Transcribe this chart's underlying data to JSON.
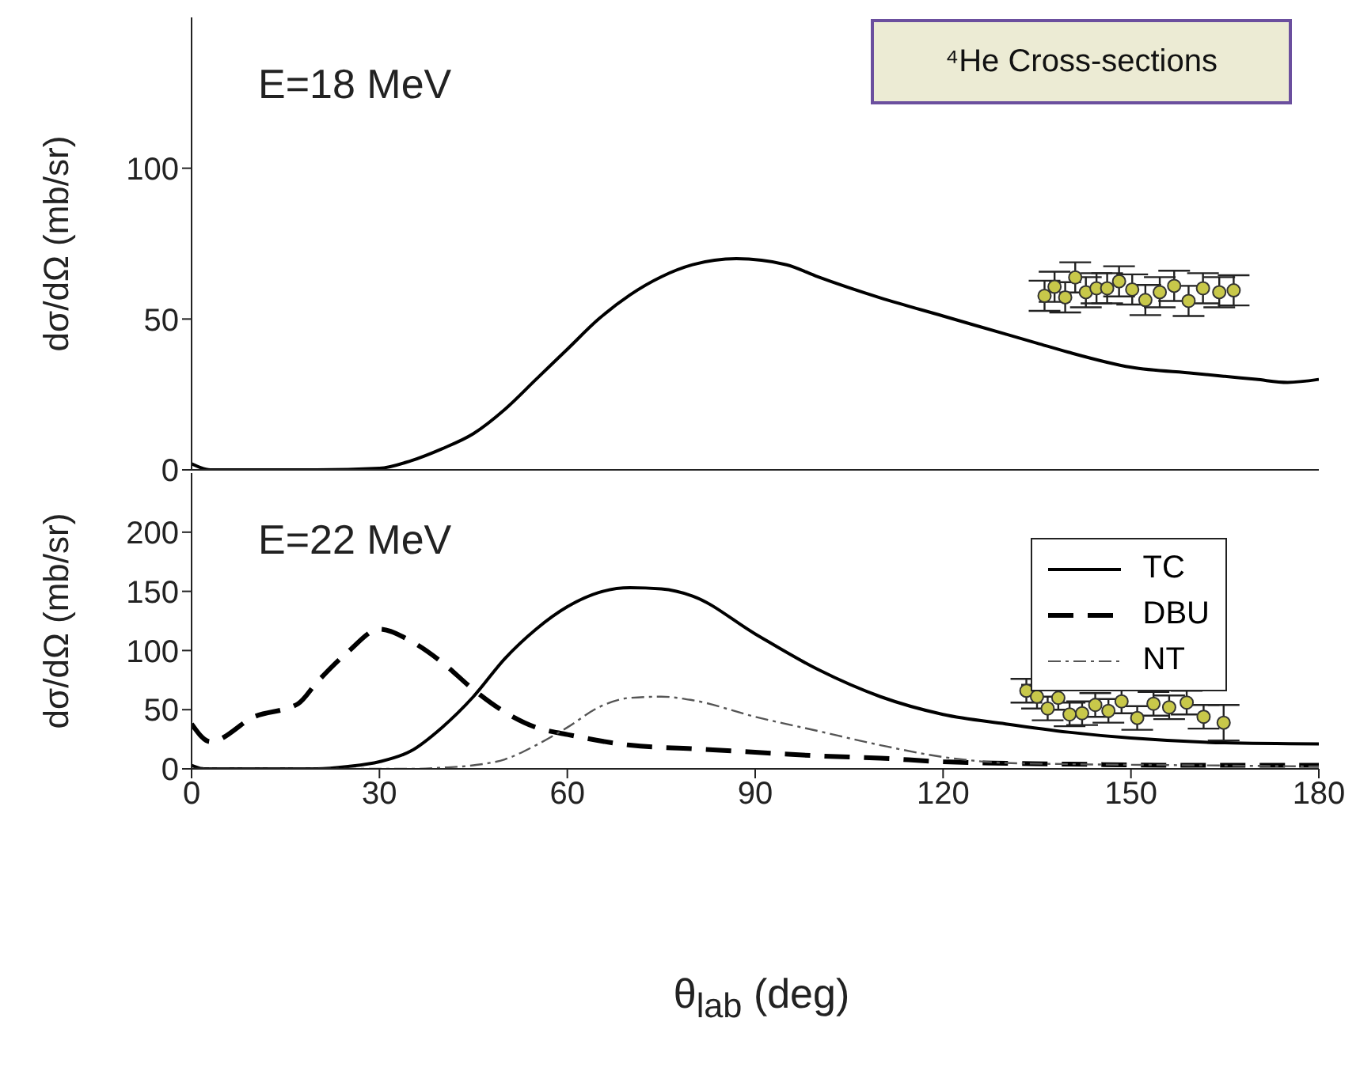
{
  "chart_data": [
    {
      "type": "line",
      "ylabel": "dσ/dΩ (mb/sr)",
      "annotations": [
        "E=18 MeV",
        "⁴He Cross-sections"
      ],
      "xlim": [
        0,
        180
      ],
      "xticks": [
        0,
        30,
        60,
        90,
        120,
        150,
        180
      ],
      "ylim": [
        0,
        150
      ],
      "yticks": [
        0,
        50,
        100
      ],
      "tick_labels": "y",
      "legend": false,
      "grid": false,
      "series": [
        {
          "type": "line",
          "color": "#000000",
          "line_style": "solid",
          "marker": "none",
          "x": [
            0,
            3,
            10,
            20,
            30,
            35,
            40,
            45,
            50,
            55,
            60,
            65,
            70,
            75,
            80,
            87,
            95,
            100,
            110,
            120,
            130,
            135,
            140,
            150,
            160,
            165,
            170,
            175,
            180
          ],
          "values": [
            2,
            0,
            0,
            0,
            0.5,
            3,
            7,
            12,
            20,
            30,
            40,
            50,
            58,
            64,
            68,
            70,
            68,
            64,
            57,
            51,
            45,
            42,
            39,
            34,
            32,
            31,
            30,
            29,
            30
          ]
        },
        {
          "type": "scatter",
          "color": "#c8c84a",
          "marker": "circle",
          "x": [
            136.2,
            137.8,
            139.5,
            141.1,
            142.8,
            144.5,
            146.2,
            148.1,
            150.2,
            152.3,
            154.6,
            156.9,
            159.2,
            161.5,
            164.1,
            166.4
          ],
          "values": [
            57.7,
            60.7,
            57.2,
            63.8,
            58.9,
            60.2,
            60.2,
            62.5,
            59.8,
            56.3,
            58.9,
            61,
            56,
            60.2,
            58.9,
            59.5
          ],
          "errors": [
            5,
            5,
            5,
            5,
            5,
            5,
            5,
            5,
            5,
            5,
            5,
            5,
            5,
            5,
            5,
            5
          ]
        }
      ]
    },
    {
      "type": "line",
      "ylabel": "dσ/dΩ (mb/sr)",
      "xlabel": "θ$_{lab}$ (deg)",
      "annotations": [
        "E=22 MeV"
      ],
      "xlim": [
        0,
        180
      ],
      "xticks": [
        0,
        30,
        60,
        90,
        120,
        150,
        180
      ],
      "ylim": [
        0,
        250
      ],
      "yticks": [
        0,
        50,
        100,
        150,
        200
      ],
      "legend": "top right",
      "grid": false,
      "series": [
        {
          "type": "line",
          "name": "TC",
          "color": "#000000",
          "line_style": "solid",
          "marker": "none",
          "x": [
            0,
            2,
            10,
            20,
            25,
            30,
            35,
            40,
            45,
            50,
            55,
            60,
            65,
            70,
            75,
            80,
            90,
            100,
            110,
            120,
            130,
            140,
            150,
            165,
            180
          ],
          "values": [
            3,
            0,
            0,
            0,
            2,
            6,
            15,
            35,
            61,
            93,
            118,
            137,
            149,
            153,
            152,
            146,
            114,
            84,
            61,
            46,
            38,
            31,
            26,
            22,
            21
          ]
        },
        {
          "type": "line",
          "name": "DBU",
          "color": "#000000",
          "line_style": "dashed",
          "marker": "none",
          "x": [
            0,
            3,
            10,
            17,
            20,
            25,
            30,
            35,
            40,
            45,
            50,
            55,
            60,
            70,
            80,
            90,
            100,
            110,
            120,
            140,
            160,
            180
          ],
          "values": [
            38,
            23,
            44,
            55,
            73,
            99,
            118,
            108,
            90,
            67,
            48,
            35,
            29,
            20,
            17,
            14,
            11,
            9,
            6,
            4,
            3,
            3
          ]
        },
        {
          "type": "line",
          "name": "NT",
          "color": "#555555",
          "line_style": "dotted",
          "marker": "none",
          "x": [
            0,
            35,
            40,
            45,
            50,
            55,
            60,
            65,
            70,
            75,
            80,
            90,
            100,
            110,
            120,
            130,
            140,
            160,
            180
          ],
          "values": [
            0,
            0,
            1,
            3,
            8,
            20,
            35,
            52,
            60,
            61,
            58,
            44,
            32,
            20,
            10,
            5,
            4,
            3,
            2
          ]
        },
        {
          "type": "scatter",
          "color": "#c8c84a",
          "marker": "circle",
          "x": [
            133.3,
            135.0,
            136.7,
            138.4,
            140.2,
            142.2,
            144.3,
            146.4,
            148.5,
            151.0,
            153.6,
            156.1,
            158.9,
            161.6,
            164.8
          ],
          "values": [
            66,
            61,
            51,
            60,
            46,
            47,
            54,
            49,
            57,
            43,
            55,
            52,
            56,
            44,
            39
          ],
          "errors": [
            10,
            10,
            10,
            10,
            10,
            10,
            10,
            10,
            10,
            10,
            10,
            10,
            10,
            10,
            15
          ]
        }
      ]
    }
  ]
}
